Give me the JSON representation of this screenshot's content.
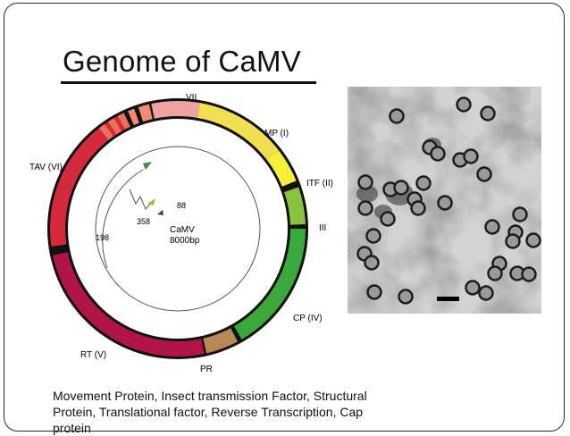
{
  "slide": {
    "title": "Genome of CaMV",
    "caption_lines": [
      "Movement Protein,  Insect transmission Factor, Structural",
      "Protein, Translational factor, Reverse Transcription, Cap",
      "protein"
    ]
  },
  "genome_map": {
    "center_label": "CaMV",
    "size_label": "8000bp",
    "segments": [
      {
        "label": "VII",
        "color": "#f0a3a0"
      },
      {
        "label": "MP (I)",
        "color": "#f0e050"
      },
      {
        "label": "ITF (II)",
        "color": "#f5f03a"
      },
      {
        "label": "III",
        "color": "#88c440"
      },
      {
        "label": "CP (IV)",
        "color": "#3aa83a"
      },
      {
        "label": "PR",
        "color": "#b88855"
      },
      {
        "label": "RT (V)",
        "color": "#b01545"
      },
      {
        "label": "TAV (VI)",
        "color": "#d42a3c"
      }
    ],
    "inner_labels": [
      "88",
      "358",
      "198"
    ],
    "arrow_colors": {
      "arrow_1": "#3a8a3a",
      "arrow_2": "#a8c040",
      "arrow_3": "#7a2a2a"
    }
  },
  "micrograph": {
    "description_icon": "virus-particles-electron-micrograph"
  }
}
